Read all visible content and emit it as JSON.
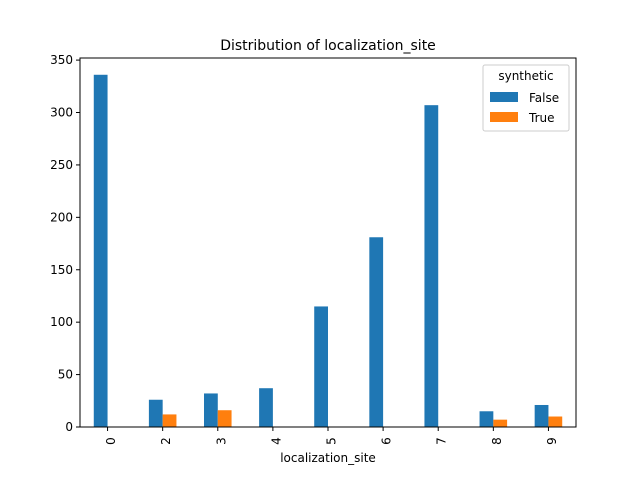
{
  "chart_data": {
    "type": "bar",
    "title": "Distribution of localization_site",
    "xlabel": "localization_site",
    "ylabel": "",
    "categories": [
      "0",
      "2",
      "3",
      "4",
      "5",
      "6",
      "7",
      "8",
      "9"
    ],
    "series": [
      {
        "name": "False",
        "values": [
          336,
          26,
          32,
          37,
          115,
          181,
          307,
          15,
          21
        ],
        "color": "#1f77b4"
      },
      {
        "name": "True",
        "values": [
          0,
          12,
          16,
          0,
          0,
          0,
          0,
          7,
          10
        ],
        "color": "#ff7f0e"
      }
    ],
    "ylim": [
      0,
      352
    ],
    "yticks": [
      0,
      50,
      100,
      150,
      200,
      250,
      300,
      350
    ],
    "grid": false,
    "legend": {
      "title": "synthetic",
      "position": "top-right"
    }
  }
}
